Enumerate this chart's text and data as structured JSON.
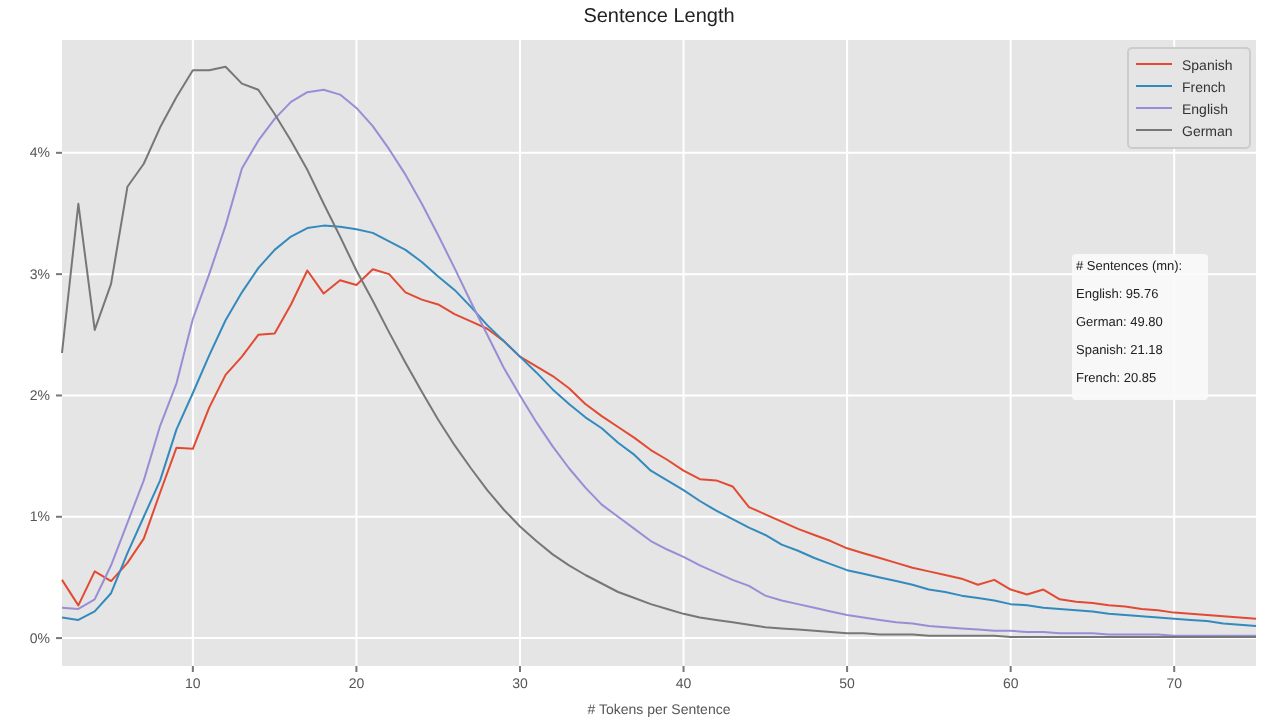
{
  "chart_data": {
    "type": "line",
    "title": "Sentence Length",
    "xlabel": "# Tokens per Sentence",
    "x": [
      2,
      3,
      4,
      5,
      6,
      7,
      8,
      9,
      10,
      11,
      12,
      13,
      14,
      15,
      16,
      17,
      18,
      19,
      20,
      21,
      22,
      23,
      24,
      25,
      26,
      27,
      28,
      29,
      30,
      31,
      32,
      33,
      34,
      35,
      36,
      37,
      38,
      39,
      40,
      41,
      42,
      43,
      44,
      45,
      46,
      47,
      48,
      49,
      50,
      51,
      52,
      53,
      54,
      55,
      56,
      57,
      58,
      59,
      60,
      61,
      62,
      63,
      64,
      65,
      66,
      67,
      68,
      69,
      70,
      71,
      72,
      73,
      74,
      75
    ],
    "series": [
      {
        "name": "Spanish",
        "color": "#e24a33",
        "values": [
          0.48,
          0.27,
          0.55,
          0.47,
          0.62,
          0.82,
          1.2,
          1.57,
          1.56,
          1.9,
          2.17,
          2.32,
          2.5,
          2.51,
          2.75,
          3.03,
          2.84,
          2.95,
          2.91,
          3.04,
          3.0,
          2.85,
          2.79,
          2.75,
          2.67,
          2.61,
          2.55,
          2.45,
          2.32,
          2.24,
          2.16,
          2.06,
          1.93,
          1.83,
          1.74,
          1.65,
          1.55,
          1.47,
          1.38,
          1.31,
          1.3,
          1.25,
          1.08,
          1.02,
          0.96,
          0.9,
          0.85,
          0.8,
          0.74,
          0.7,
          0.66,
          0.62,
          0.58,
          0.55,
          0.52,
          0.49,
          0.44,
          0.48,
          0.4,
          0.36,
          0.4,
          0.32,
          0.3,
          0.29,
          0.27,
          0.26,
          0.24,
          0.23,
          0.21,
          0.2,
          0.19,
          0.18,
          0.17,
          0.16
        ]
      },
      {
        "name": "French",
        "color": "#348abd",
        "values": [
          0.17,
          0.15,
          0.22,
          0.37,
          0.7,
          1.0,
          1.3,
          1.72,
          2.02,
          2.33,
          2.62,
          2.85,
          3.05,
          3.2,
          3.31,
          3.38,
          3.4,
          3.39,
          3.37,
          3.34,
          3.27,
          3.2,
          3.1,
          2.98,
          2.87,
          2.73,
          2.58,
          2.45,
          2.32,
          2.19,
          2.05,
          1.93,
          1.82,
          1.73,
          1.61,
          1.51,
          1.38,
          1.3,
          1.22,
          1.13,
          1.05,
          0.98,
          0.91,
          0.85,
          0.77,
          0.72,
          0.66,
          0.61,
          0.56,
          0.53,
          0.5,
          0.47,
          0.44,
          0.4,
          0.38,
          0.35,
          0.33,
          0.31,
          0.28,
          0.27,
          0.25,
          0.24,
          0.23,
          0.22,
          0.2,
          0.19,
          0.18,
          0.17,
          0.16,
          0.15,
          0.14,
          0.12,
          0.11,
          0.1
        ]
      },
      {
        "name": "English",
        "color": "#988ed5",
        "values": [
          0.25,
          0.24,
          0.32,
          0.6,
          0.95,
          1.3,
          1.75,
          2.1,
          2.63,
          3.0,
          3.4,
          3.87,
          4.1,
          4.28,
          4.42,
          4.5,
          4.52,
          4.48,
          4.37,
          4.22,
          4.03,
          3.82,
          3.58,
          3.32,
          3.05,
          2.77,
          2.5,
          2.23,
          2.0,
          1.78,
          1.58,
          1.4,
          1.24,
          1.1,
          1.0,
          0.9,
          0.8,
          0.73,
          0.67,
          0.6,
          0.54,
          0.48,
          0.43,
          0.35,
          0.31,
          0.28,
          0.25,
          0.22,
          0.19,
          0.17,
          0.15,
          0.13,
          0.12,
          0.1,
          0.09,
          0.08,
          0.07,
          0.06,
          0.06,
          0.05,
          0.05,
          0.04,
          0.04,
          0.04,
          0.03,
          0.03,
          0.03,
          0.03,
          0.02,
          0.02,
          0.02,
          0.02,
          0.02,
          0.02
        ]
      },
      {
        "name": "German",
        "color": "#777777",
        "values": [
          2.35,
          3.58,
          2.54,
          2.92,
          3.72,
          3.91,
          4.21,
          4.46,
          4.68,
          4.68,
          4.71,
          4.57,
          4.52,
          4.32,
          4.1,
          3.86,
          3.58,
          3.31,
          3.03,
          2.78,
          2.52,
          2.27,
          2.03,
          1.8,
          1.59,
          1.4,
          1.22,
          1.06,
          0.92,
          0.8,
          0.69,
          0.6,
          0.52,
          0.45,
          0.38,
          0.33,
          0.28,
          0.24,
          0.2,
          0.17,
          0.15,
          0.13,
          0.11,
          0.09,
          0.08,
          0.07,
          0.06,
          0.05,
          0.04,
          0.04,
          0.03,
          0.03,
          0.03,
          0.02,
          0.02,
          0.02,
          0.02,
          0.02,
          0.01,
          0.01,
          0.01,
          0.01,
          0.01,
          0.01,
          0.01,
          0.01,
          0.01,
          0.01,
          0.01,
          0.01,
          0.01,
          0.01,
          0.01,
          0.01
        ]
      }
    ],
    "xlim": [
      2,
      75
    ],
    "xticks": [
      10,
      20,
      30,
      40,
      50,
      60,
      70
    ],
    "ylim": [
      -0.23,
      4.93
    ],
    "yticks": [
      {
        "value": 0,
        "label": "0%"
      },
      {
        "value": 1,
        "label": "1%"
      },
      {
        "value": 2,
        "label": "2%"
      },
      {
        "value": 3,
        "label": "3%"
      },
      {
        "value": 4,
        "label": "4%"
      }
    ],
    "grid": true,
    "legend": "top right",
    "marker": "none",
    "line_style": "solid",
    "annotations": [
      "# Sentences (mn):",
      "English: 95.76",
      "German: 49.80",
      "Spanish: 21.18",
      "French: 20.85"
    ]
  }
}
